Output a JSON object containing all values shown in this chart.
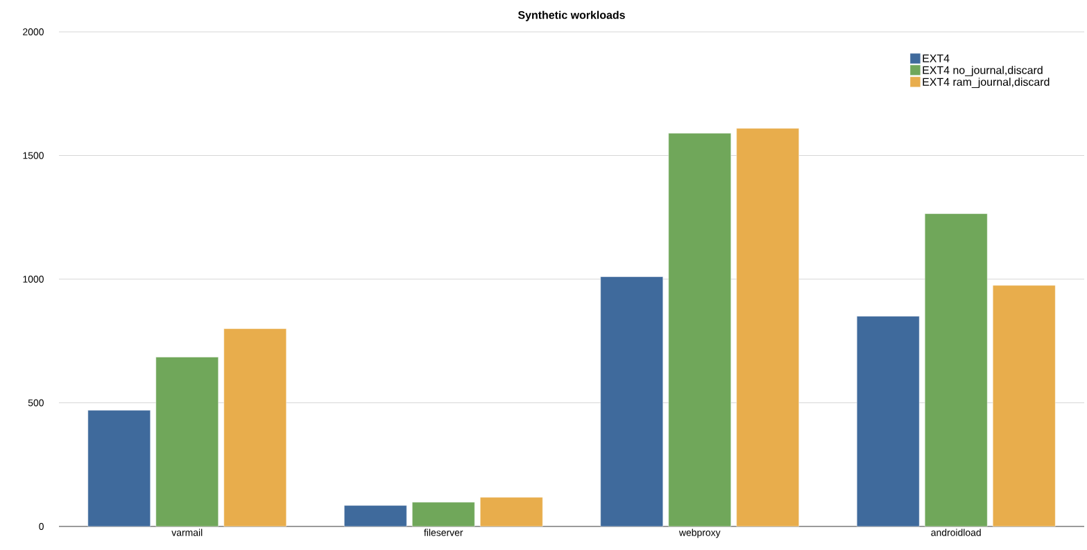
{
  "chart_data": {
    "type": "bar",
    "title": "Synthetic workloads",
    "categories": [
      "varmail",
      "fileserver",
      "webproxy",
      "androidload"
    ],
    "series": [
      {
        "name": "EXT4",
        "color": "#3f6a9c",
        "values": [
          470,
          85,
          1010,
          850
        ]
      },
      {
        "name": "EXT4 no_journal,discard",
        "color": "#70a75a",
        "values": [
          685,
          98,
          1590,
          1265
        ]
      },
      {
        "name": "EXT4 ram_journal,discard",
        "color": "#e8ad4c",
        "values": [
          800,
          118,
          1610,
          975
        ]
      }
    ],
    "ylim": [
      0,
      2000
    ],
    "yticks": [
      0,
      500,
      1000,
      1500,
      2000
    ],
    "grid": "y",
    "legend": "top right"
  }
}
